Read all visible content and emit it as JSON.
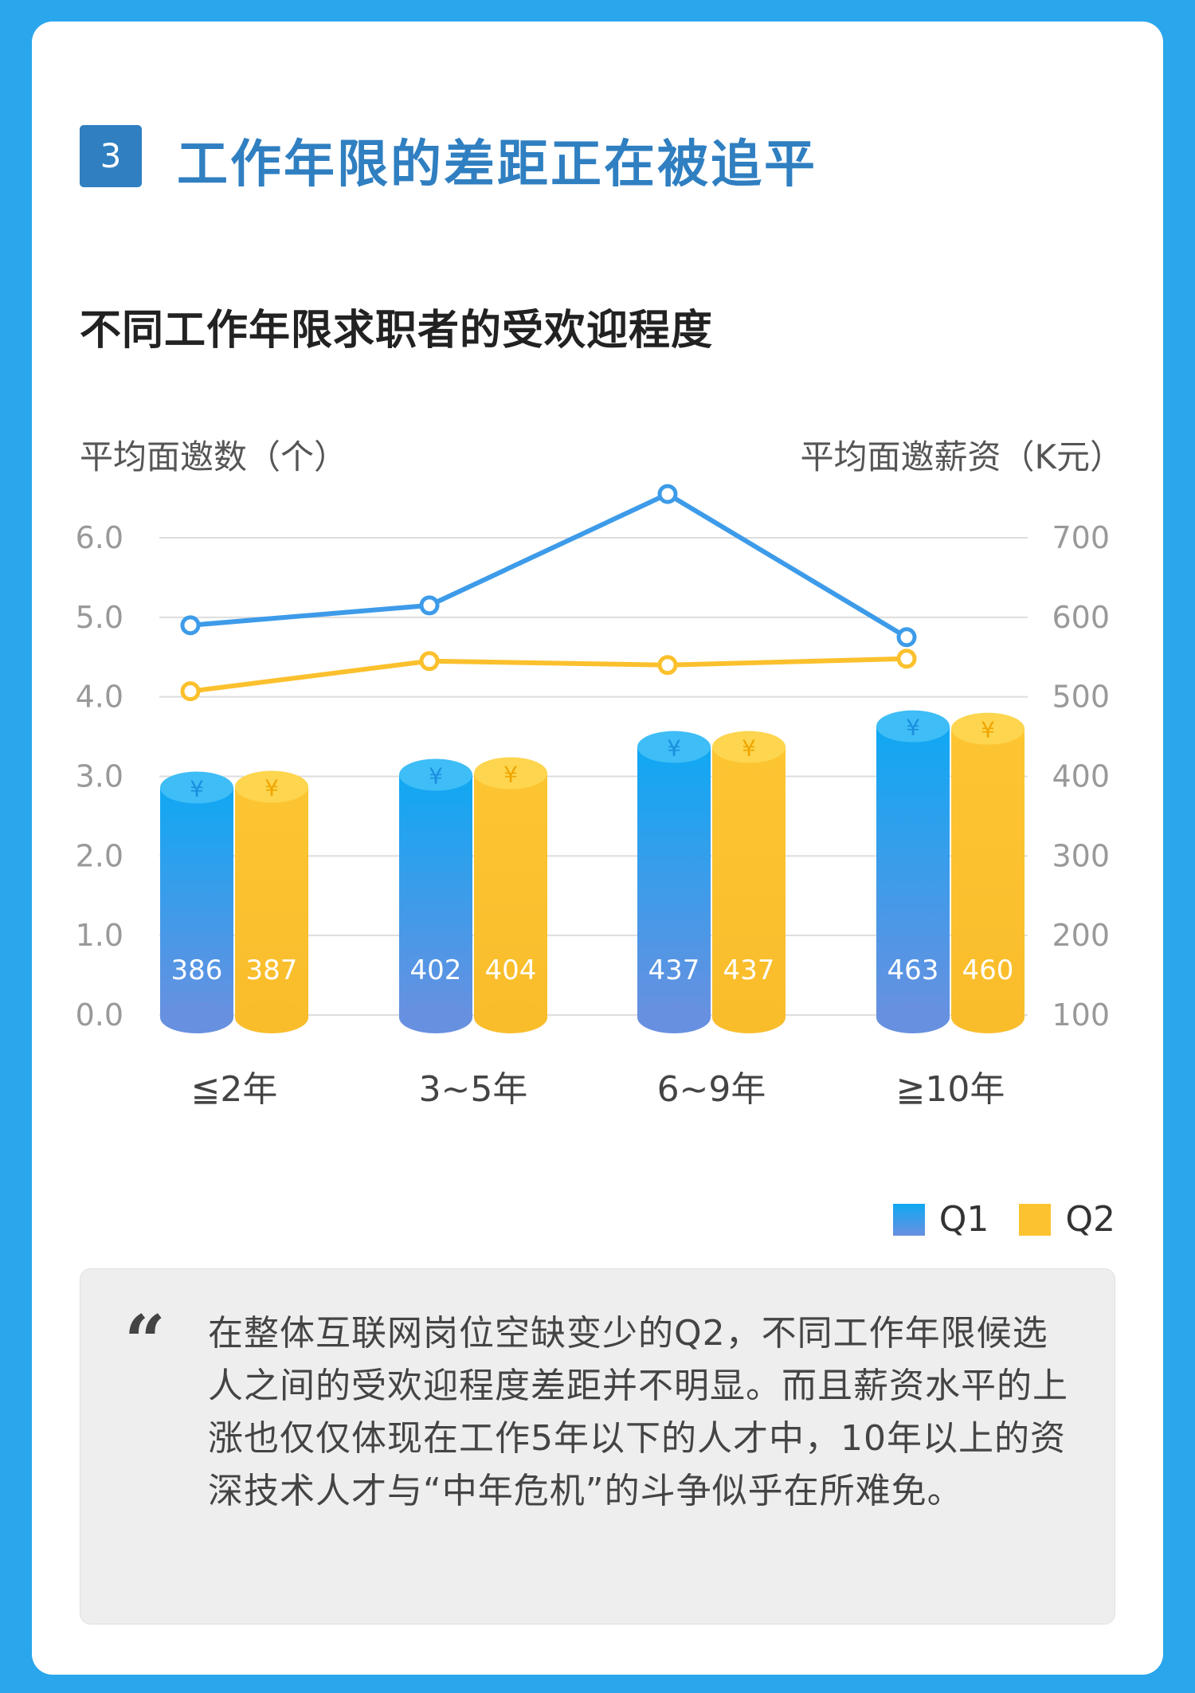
{
  "section": {
    "number": "3",
    "title": "工作年限的差距正在被追平"
  },
  "chart_data": {
    "type": "bar",
    "title": "不同工作年限求职者的受欢迎程度",
    "ylabel_left": "平均面邀数（个）",
    "ylabel_right": "平均面邀薪资（K元）",
    "categories": [
      "≦2年",
      "3~5年",
      "6~9年",
      "≧10年"
    ],
    "left_axis": {
      "ticks": [
        "6.0",
        "5.0",
        "4.0",
        "3.0",
        "2.0",
        "1.0",
        "0.0"
      ],
      "ylim": [
        0,
        6
      ]
    },
    "right_axis": {
      "ticks": [
        "700",
        "600",
        "500",
        "400",
        "300",
        "200",
        "100"
      ],
      "ylim": [
        100,
        700
      ]
    },
    "bar_series": [
      {
        "name": "Q1",
        "values": [
          386,
          402,
          437,
          463
        ],
        "color": "#1aa3f0"
      },
      {
        "name": "Q2",
        "values": [
          387,
          404,
          437,
          460
        ],
        "color": "#fcc230"
      }
    ],
    "line_series": [
      {
        "name": "Q1",
        "values": [
          4.9,
          5.15,
          6.55,
          4.75
        ],
        "color": "#3d9be9"
      },
      {
        "name": "Q2",
        "values": [
          4.07,
          4.45,
          4.4,
          4.48
        ],
        "color": "#fbc02d"
      }
    ],
    "bar_symbol": "¥",
    "legend": [
      "Q1",
      "Q2"
    ],
    "legend_position": "bottom-right",
    "grid": true
  },
  "quote": {
    "mark": "“",
    "text": "在整体互联网岗位空缺变少的Q2，不同工作年限候选人之间的受欢迎程度差距并不明显。而且薪资水平的上涨也仅仅体现在工作5年以下的人才中，10年以上的资深技术人才与“中年危机”的斗争似乎在所难免。"
  }
}
